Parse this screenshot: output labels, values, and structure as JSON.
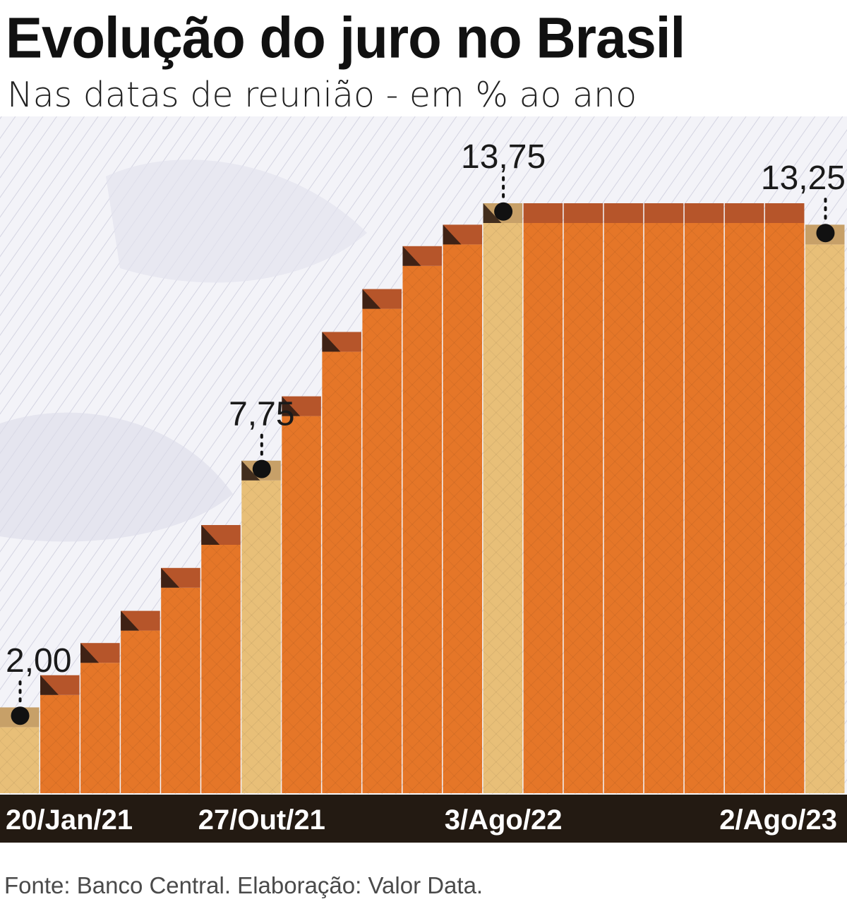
{
  "title": "Evolução do juro no Brasil",
  "subtitle": "Nas datas de reunião - em % ao ano",
  "source": "Fonte: Banco Central. Elaboração: Valor Data.",
  "colors": {
    "bar": "#e57628",
    "bar_highlight": "#e8bf78",
    "bar_top": "#b6552a",
    "bar_top_highlight": "#c7a068",
    "axis_band": "#231a12",
    "background_pattern": "#b9b9cf"
  },
  "chart_data": {
    "type": "bar",
    "title": "Evolução do juro no Brasil",
    "subtitle": "Nas datas de reunião - em % ao ano",
    "values": [
      2.0,
      2.75,
      3.5,
      4.25,
      5.25,
      6.25,
      7.75,
      9.25,
      10.75,
      11.75,
      12.75,
      13.25,
      13.75,
      13.75,
      13.75,
      13.75,
      13.75,
      13.75,
      13.75,
      13.75,
      13.25
    ],
    "highlighted": [
      0,
      6,
      12,
      20
    ],
    "value_labels": [
      {
        "index": 0,
        "text": "2,00"
      },
      {
        "index": 6,
        "text": "7,75"
      },
      {
        "index": 12,
        "text": "13,75"
      },
      {
        "index": 20,
        "text": "13,25"
      }
    ],
    "x_tick_labels": [
      {
        "index": 0,
        "text": "20/Jan/21"
      },
      {
        "index": 6,
        "text": "27/Out/21"
      },
      {
        "index": 12,
        "text": "3/Ago/22"
      },
      {
        "index": 20,
        "text": "2/Ago/23"
      }
    ],
    "ylim": [
      0,
      14.5
    ],
    "grid": false,
    "legend": "none"
  }
}
